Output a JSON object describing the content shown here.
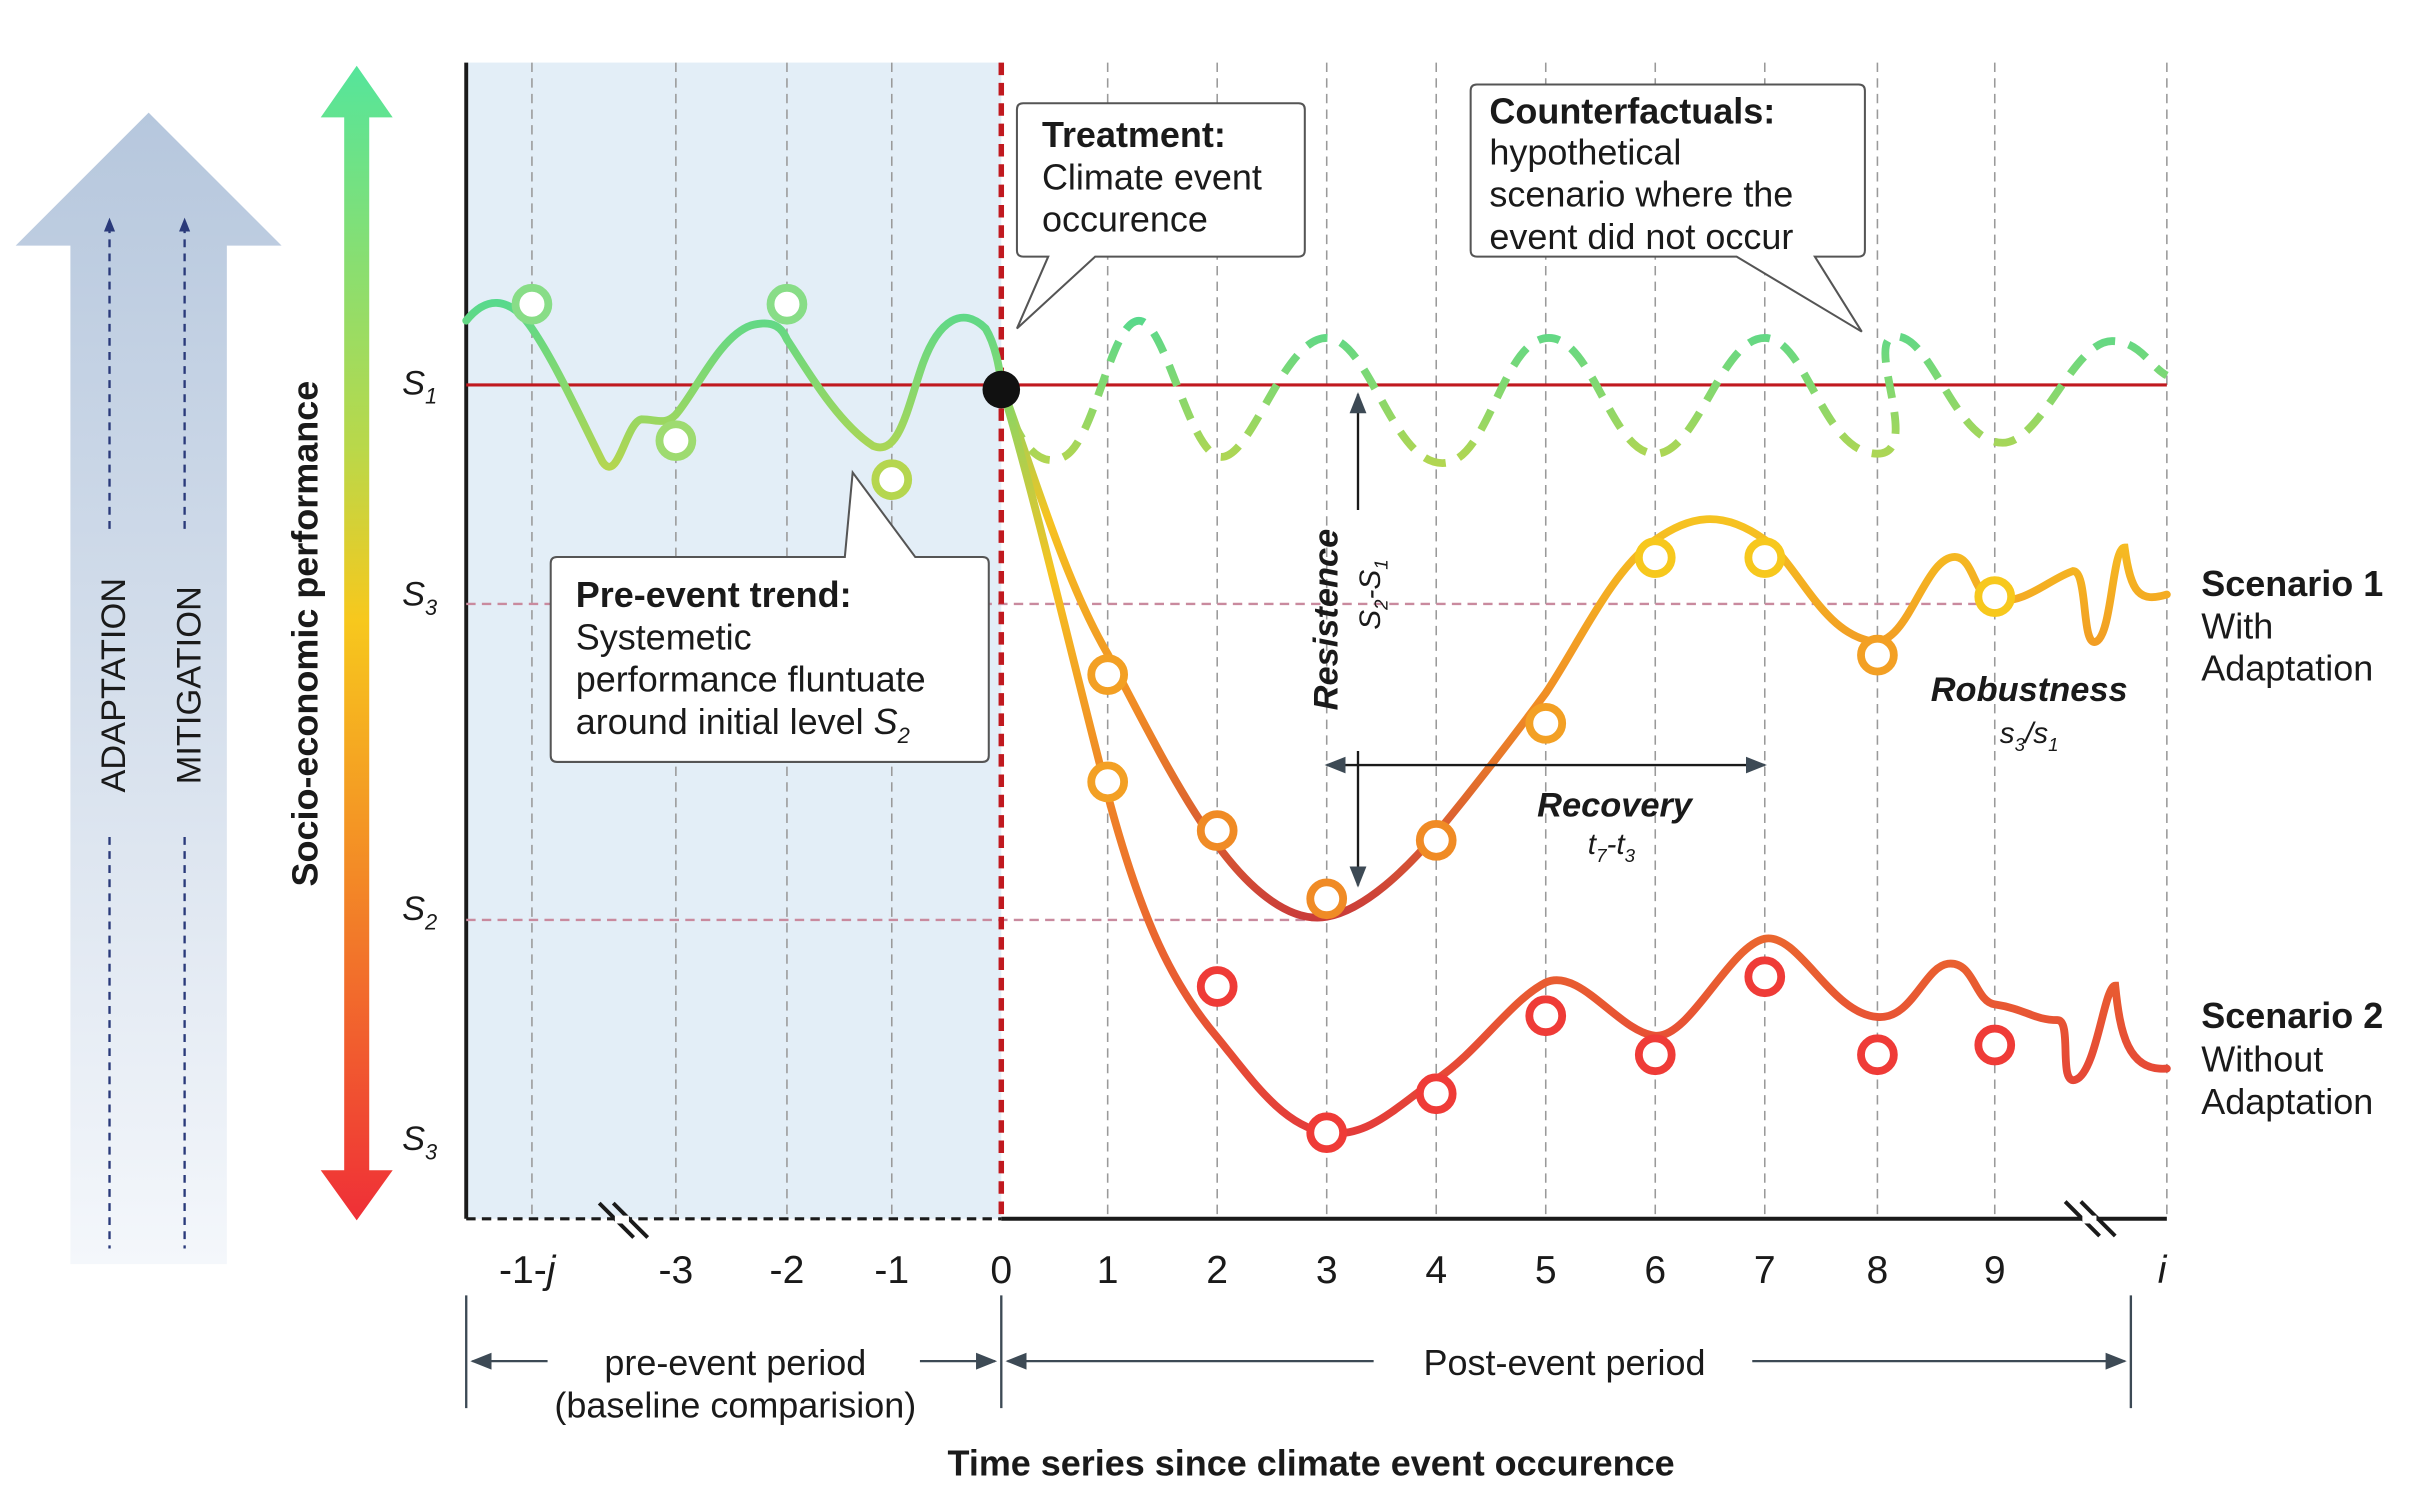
{
  "y_axis": {
    "title": "Socio-economic performance",
    "levels": {
      "top": {
        "base": "S",
        "sub": "1"
      },
      "upper": {
        "base": "S",
        "sub": "3"
      },
      "lower": {
        "base": "S",
        "sub": "2"
      },
      "bottom": {
        "base": "S",
        "sub": "3"
      }
    }
  },
  "side_arrows": {
    "left": "ADAPTATION",
    "right": "MITIGATION"
  },
  "x_axis": {
    "title": "Time series since climate event occurence",
    "pre_ticks": [
      {
        "t": -4,
        "label": "-1-",
        "suffix": "j"
      },
      {
        "t": -3,
        "label": "-3"
      },
      {
        "t": -2,
        "label": "-2"
      },
      {
        "t": -1,
        "label": "-1"
      }
    ],
    "post_ticks": [
      {
        "t": 0,
        "label": "0"
      },
      {
        "t": 1,
        "label": "1"
      },
      {
        "t": 2,
        "label": "2"
      },
      {
        "t": 3,
        "label": "3"
      },
      {
        "t": 4,
        "label": "4"
      },
      {
        "t": 5,
        "label": "5"
      },
      {
        "t": 6,
        "label": "6"
      },
      {
        "t": 7,
        "label": "7"
      },
      {
        "t": 8,
        "label": "8"
      },
      {
        "t": 9,
        "label": "9"
      }
    ],
    "end_tick": "i",
    "pre_period": {
      "line1": "pre-event period",
      "line2": "(baseline comparision)"
    },
    "post_period": "Post-event period"
  },
  "callouts": {
    "treatment": {
      "title": "Treatment:",
      "lines": [
        "Climate event",
        "occurence"
      ]
    },
    "counterfactuals": {
      "title": "Counterfactuals:",
      "lines": [
        "hypothetical",
        "scenario where the",
        "event did not occur"
      ]
    },
    "pre_event": {
      "title": "Pre-event trend:",
      "line1": "Systemetic",
      "line2": "performance fluntuate",
      "line3": "around initial level ",
      "level": {
        "base": "S",
        "sub": "2"
      }
    }
  },
  "annotations": {
    "resistance": {
      "label": "Resistence",
      "a": "S",
      "a_sub": "2",
      "b": "-S",
      "b_sub": "1"
    },
    "recovery": {
      "label": "Recovery",
      "a": "t",
      "a_sub": "7",
      "b": "-t",
      "b_sub": "3"
    },
    "robustness": {
      "label": "Robustness",
      "a": "s",
      "a_sub": "3",
      "b": "/s",
      "b_sub": "1"
    }
  },
  "scenarios": {
    "s1": {
      "title": "Scenario 1",
      "line1": "With",
      "line2": "Adaptation"
    },
    "s2": {
      "title": "Scenario 2",
      "line1": "Without",
      "line2": "Adaptation"
    }
  },
  "chart_data": {
    "type": "line",
    "x": [
      -4,
      -3,
      -2,
      -1,
      0,
      1,
      2,
      3,
      4,
      5,
      6,
      7,
      8,
      9
    ],
    "series": [
      {
        "key": "pre",
        "x": [
          -4,
          -3,
          -2,
          -1,
          0
        ],
        "values": [
          0.85,
          0.71,
          0.85,
          0.67,
          0.77
        ]
      },
      {
        "key": "counterfactual",
        "x": [
          0,
          1,
          2,
          3,
          4,
          5,
          6,
          7,
          8,
          9
        ],
        "values": [
          0.77,
          0.88,
          0.66,
          0.87,
          0.67,
          0.87,
          0.67,
          0.87,
          0.67,
          0.87
        ]
      },
      {
        "key": "s1",
        "x": [
          0,
          1,
          2,
          3,
          4,
          5,
          6,
          7,
          8,
          9
        ],
        "values": [
          0.77,
          0.47,
          0.31,
          0.24,
          0.3,
          0.42,
          0.59,
          0.59,
          0.49,
          0.55
        ]
      },
      {
        "key": "s2",
        "x": [
          0,
          1,
          2,
          3,
          4,
          5,
          6,
          7,
          8,
          9
        ],
        "values": [
          0.77,
          0.36,
          0.15,
          0.0,
          0.04,
          0.12,
          0.08,
          0.16,
          0.08,
          0.09
        ]
      }
    ],
    "reference_levels": {
      "s1_top": 0.77,
      "s3_upper": 0.52,
      "s2_lower": 0.24
    },
    "ylim": [
      0,
      1
    ],
    "grid": "vertical dashed"
  },
  "colors": {
    "treatment_line": "#c0191f",
    "baseline_line": "#c0191f",
    "reference_dashed": "#c98a9e",
    "pre_event_shade": "#e3eef7",
    "green": "#55d98e",
    "yellow": "#f6c321",
    "orange": "#f08b25",
    "red": "#ef3b37"
  }
}
